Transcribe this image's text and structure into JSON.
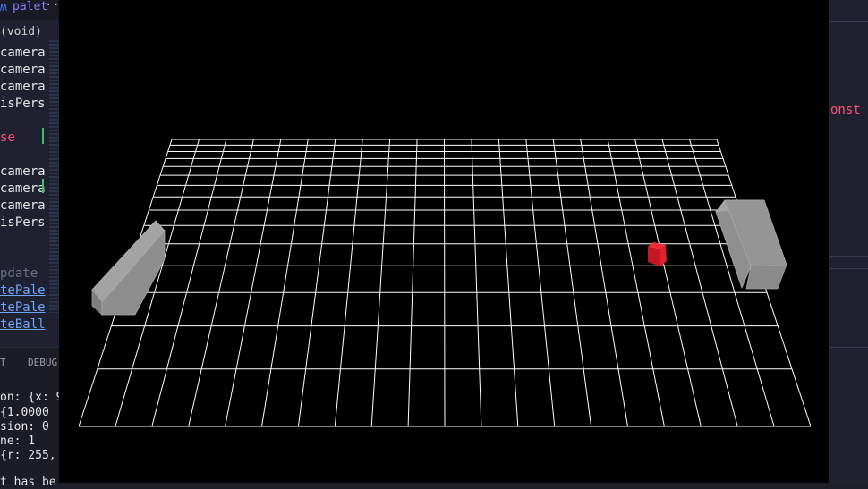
{
  "editor": {
    "tab_file_icon": "ʍ",
    "tab_name": "palet",
    "tab_more": "···",
    "function_signature": "(void)",
    "code_lines": [
      {
        "text": "camera",
        "top": 51
      },
      {
        "text": "camera",
        "top": 70
      },
      {
        "text": "camera",
        "top": 89
      },
      {
        "text": "isPers",
        "top": 108
      }
    ],
    "code_else": "se",
    "code_lines_2": [
      {
        "text": "camera",
        "top": 184
      },
      {
        "text": "camera",
        "top": 203
      },
      {
        "text": "camera",
        "top": 222
      },
      {
        "text": "isPers",
        "top": 241
      }
    ],
    "comment": "pdate",
    "update_calls": [
      "tePale",
      "tePale",
      "teBall"
    ],
    "right_text": "onst",
    "panel_tabs": [
      "T",
      "DEBUG"
    ],
    "debug_lines": [
      "on: {x: 9",
      "  {1.0000",
      "sion: 0",
      "ne: 1",
      " {r: 255,",
      "t has be"
    ]
  },
  "game": {
    "background_color": "#000000",
    "grid_color": "#ffffff",
    "paddle_color": "#8c8c8c",
    "ball_color": "#e5202b"
  }
}
